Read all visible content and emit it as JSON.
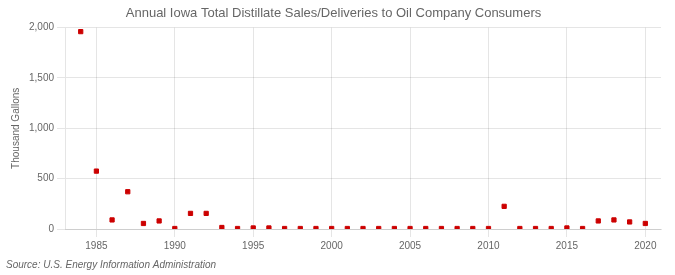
{
  "chart_data": {
    "type": "scatter",
    "title": "Annual Iowa Total Distillate Sales/Deliveries to Oil Company Consumers",
    "ylabel": "Thousand Gallons",
    "annotation": "Source: U.S. Energy Information Administration",
    "x": [
      1984,
      1985,
      1986,
      1987,
      1988,
      1989,
      1990,
      1991,
      1992,
      1993,
      1994,
      1995,
      1996,
      1997,
      1998,
      1999,
      2000,
      2001,
      2002,
      2003,
      2004,
      2005,
      2006,
      2007,
      2008,
      2009,
      2010,
      2011,
      2012,
      2013,
      2014,
      2015,
      2016,
      2017,
      2018,
      2019,
      2020
    ],
    "values": [
      1960,
      575,
      90,
      370,
      55,
      80,
      5,
      155,
      155,
      15,
      5,
      10,
      10,
      5,
      5,
      5,
      5,
      5,
      5,
      5,
      5,
      5,
      5,
      5,
      5,
      5,
      5,
      225,
      5,
      5,
      5,
      10,
      5,
      80,
      90,
      70,
      55
    ],
    "color": "#cc0000",
    "marker": "square",
    "xlim": [
      1983,
      2021
    ],
    "xticks": [
      1985,
      1990,
      1995,
      2000,
      2005,
      2010,
      2015,
      2020
    ],
    "ylim": [
      0,
      2000
    ],
    "yticks": [
      0,
      500,
      {
        "value": 1000,
        "label": "1,000"
      },
      {
        "value": 1500,
        "label": "1,500"
      },
      {
        "value": 2000,
        "label": "2,000"
      }
    ],
    "grid": true
  }
}
